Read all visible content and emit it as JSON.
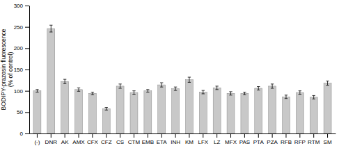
{
  "chart_data": {
    "type": "bar",
    "categories": [
      "(-)",
      "DNR",
      "AK",
      "AMX",
      "CFX",
      "CFZ",
      "CS",
      "CTM",
      "EMB",
      "ETA",
      "INH",
      "KM",
      "LFX",
      "LZ",
      "MFX",
      "PAS",
      "PTA",
      "PZA",
      "RFB",
      "RFP",
      "RTM",
      "SM"
    ],
    "values": [
      100,
      246,
      122,
      103,
      94,
      58,
      111,
      96,
      100,
      114,
      105,
      126,
      97,
      107,
      94,
      94,
      106,
      111,
      86,
      96,
      85,
      118
    ],
    "errors": [
      3,
      8,
      5,
      4,
      3,
      3,
      5,
      4,
      3,
      5,
      4,
      6,
      4,
      4,
      4,
      3,
      4,
      5,
      4,
      4,
      4,
      5
    ],
    "color": "#c8c8c8",
    "ylabel": "BODIPY-prazosin fluorescence\n(% of control)",
    "ylim": [
      0,
      300
    ],
    "yticks": [
      0,
      50,
      100,
      150,
      200,
      250,
      300
    ],
    "grid": false
  }
}
